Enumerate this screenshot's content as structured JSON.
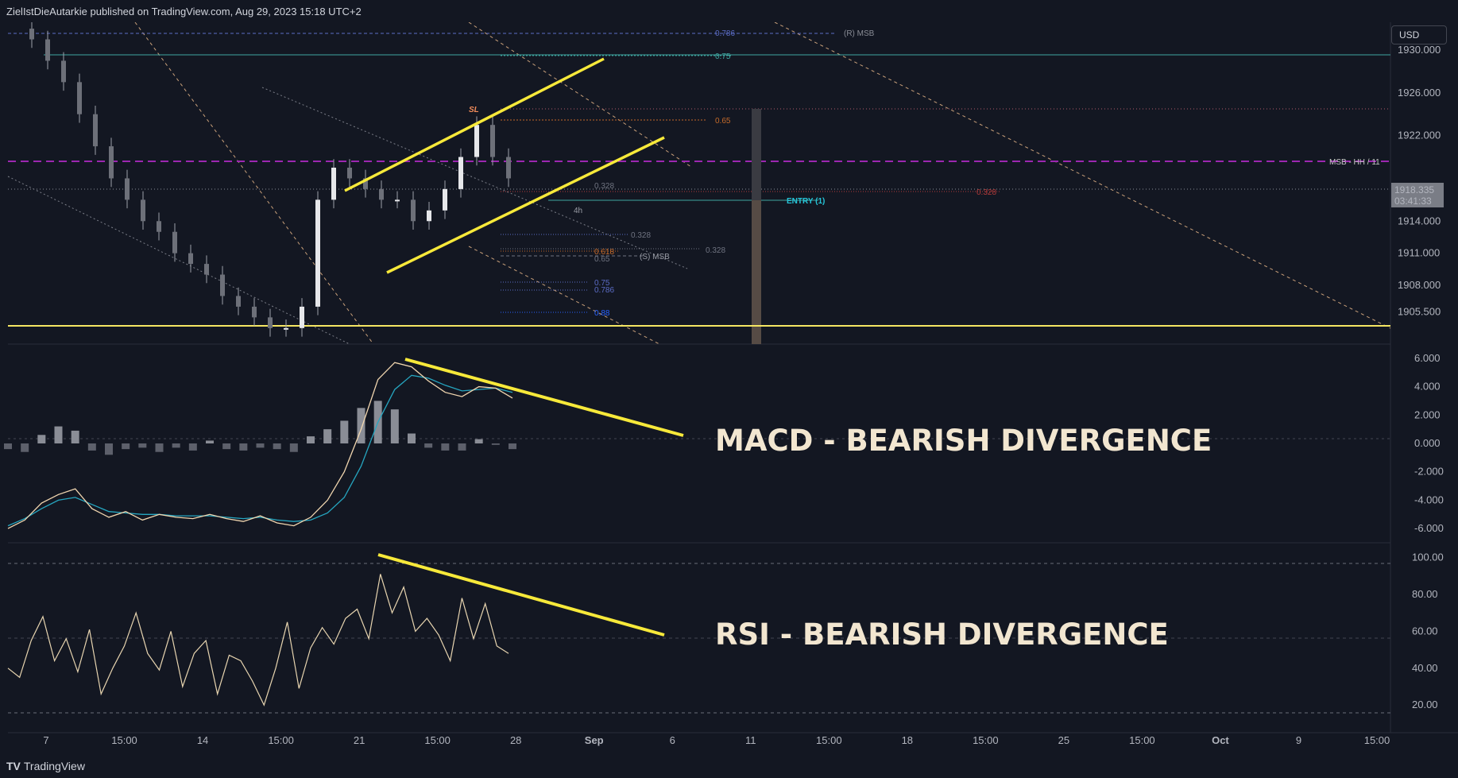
{
  "header": {
    "publisher": "ZielIstDieAutarkie published on TradingView.com, Aug 29, 2023 15:18 UTC+2"
  },
  "currency": "USD",
  "footer": {
    "brand": "TradingView",
    "logo_glyph": "TV"
  },
  "annotations": {
    "macd_text": "MACD - BEARISH DIVERGENCE",
    "rsi_text": "RSI - BEARISH DIVERGENCE",
    "sl": "SL",
    "entry": "ENTRY (1)",
    "msb_hh": "MSB - HH / 11",
    "r_msb": "(R) MSB",
    "s_msb": "(S) MSB",
    "timeframe": "4h",
    "fib_786_top": "0.786",
    "fib_75_top": "0.75",
    "fib_65_top": "0.65",
    "fib_328_a": "0.328",
    "fib_328_b": "0.328",
    "fib_328_c": "0.328",
    "fib_328_red": "0.328",
    "fib_618": "0.618",
    "fib_65_low": "0.65",
    "fib_75_low": "0.75",
    "fib_786_low": "0.786",
    "fib_88": "0.88"
  },
  "price_badge": {
    "price": "1918.335",
    "countdown": "03:41:33"
  },
  "colors": {
    "background": "#131722",
    "trendline": "#f7e93a",
    "msb_line": "#9c27b0",
    "macd": "#f2d7b0",
    "signal": "#26a6c0",
    "rsi": "#e8d5b0",
    "hline": "#f5e663"
  },
  "chart_data": [
    {
      "type": "candlestick",
      "panel": "price",
      "price_axis_labels": [
        "1930.000",
        "1926.000",
        "1922.000",
        "1914.000",
        "1911.000",
        "1908.000",
        "1905.500"
      ],
      "ylim": [
        1902.5,
        1932.6
      ],
      "horizontal_levels": [
        {
          "name": "MSB - HH / 11",
          "value": 1921.3
        },
        {
          "name": "support",
          "value": 1905.5
        }
      ],
      "last_price": 1918.335,
      "time_labels": [
        "7",
        "15:00",
        "14",
        "15:00",
        "21",
        "15:00",
        "28",
        "Sep",
        "6",
        "11",
        "15:00",
        "18",
        "15:00",
        "25",
        "15:00",
        "Oct",
        "9",
        "15:00"
      ],
      "closes": [
        1932,
        1931,
        1929,
        1927,
        1924,
        1921,
        1918,
        1916,
        1914,
        1913,
        1911,
        1910,
        1909,
        1907,
        1906,
        1905,
        1904,
        1904,
        1906,
        1916,
        1919,
        1918,
        1917,
        1916,
        1916,
        1914,
        1915,
        1917,
        1920,
        1923,
        1920,
        1918
      ]
    },
    {
      "type": "line",
      "panel": "macd",
      "ylabels": [
        "6.000",
        "4.000",
        "2.000",
        "0.000",
        "-2.000",
        "-4.000",
        "-6.000"
      ],
      "ylim": [
        -7,
        7
      ],
      "series": [
        {
          "values": [
            -6.0,
            -5.4,
            -4.2,
            -3.6,
            -3.2,
            -4.6,
            -5.2,
            -4.8,
            -5.4,
            -5.0,
            -5.2,
            -5.3,
            -5.0,
            -5.3,
            -5.5,
            -5.1,
            -5.6,
            -5.8,
            -5.2,
            -4.0,
            -2.0,
            1.0,
            4.5,
            5.7,
            5.4,
            4.4,
            3.6,
            3.3,
            4.0,
            3.9,
            3.2
          ]
        },
        {
          "values": [
            -5.8,
            -5.3,
            -4.6,
            -4.0,
            -3.8,
            -4.3,
            -4.8,
            -4.9,
            -5.0,
            -5.0,
            -5.1,
            -5.1,
            -5.1,
            -5.2,
            -5.3,
            -5.2,
            -5.4,
            -5.5,
            -5.4,
            -4.9,
            -3.8,
            -1.6,
            1.5,
            3.8,
            4.8,
            4.6,
            4.1,
            3.7,
            3.8,
            3.9,
            3.6
          ]
        }
      ],
      "histogram": [
        -0.4,
        -0.6,
        0.6,
        1.2,
        0.9,
        -0.5,
        -0.8,
        -0.4,
        -0.3,
        -0.6,
        -0.3,
        -0.5,
        0.2,
        -0.4,
        -0.5,
        -0.3,
        -0.4,
        -0.6,
        0.5,
        1.0,
        1.6,
        2.5,
        3.0,
        2.4,
        0.7,
        -0.3,
        -0.5,
        -0.5,
        0.3,
        -0.1,
        -0.4
      ]
    },
    {
      "type": "line",
      "panel": "rsi",
      "ylabels": [
        "100.00",
        "80.00",
        "60.00",
        "40.00",
        "20.00"
      ],
      "ylim": [
        5,
        108
      ],
      "levels": [
        90,
        50,
        10
      ],
      "series": [
        {
          "values": [
            40,
            35,
            55,
            68,
            44,
            56,
            38,
            61,
            26,
            40,
            52,
            70,
            48,
            39,
            60,
            30,
            48,
            55,
            26,
            47,
            44,
            33,
            20,
            40,
            65,
            29,
            51,
            62,
            53,
            67,
            72,
            56,
            91,
            70,
            84,
            60,
            67,
            58,
            44,
            78,
            56,
            75,
            52,
            48
          ]
        }
      ]
    }
  ]
}
